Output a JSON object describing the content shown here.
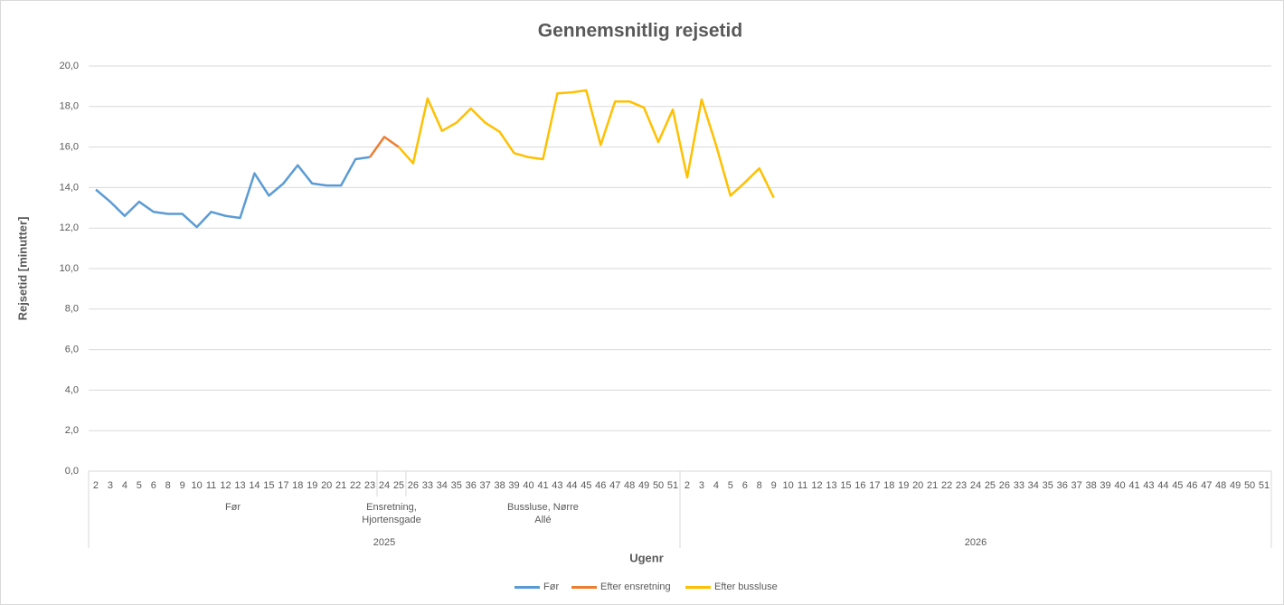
{
  "chart_data": {
    "type": "line",
    "title": "Gennemsnitlig rejsetid",
    "x_label": "Ugenr",
    "y_label": "Rejsetid [minutter]",
    "categories": [
      "2",
      "3",
      "4",
      "5",
      "6",
      "8",
      "9",
      "10",
      "11",
      "12",
      "13",
      "14",
      "15",
      "17",
      "18",
      "19",
      "20",
      "21",
      "22",
      "23",
      "24",
      "25",
      "26",
      "33",
      "34",
      "35",
      "36",
      "37",
      "38",
      "39",
      "40",
      "41",
      "43",
      "44",
      "45",
      "46",
      "47",
      "48",
      "49",
      "50",
      "51",
      "2",
      "3",
      "4",
      "5",
      "6",
      "8",
      "9",
      "10",
      "11",
      "12",
      "13",
      "15",
      "16",
      "17",
      "18",
      "19",
      "20",
      "21",
      "22",
      "23",
      "24",
      "25",
      "26",
      "33",
      "34",
      "35",
      "36",
      "37",
      "38",
      "39",
      "40",
      "41",
      "43",
      "44",
      "45",
      "46",
      "47",
      "48",
      "49",
      "50",
      "51"
    ],
    "group_labels": [
      "Før",
      null,
      null,
      null,
      null,
      null,
      null,
      null,
      null,
      null,
      null,
      null,
      null,
      null,
      null,
      null,
      null,
      null,
      null,
      null,
      "Ensretning, Hjortensgade",
      null,
      "Bussluse, Nørre Allé",
      null,
      null,
      null,
      null,
      null,
      null,
      null,
      null,
      null,
      null,
      null,
      null,
      null,
      null,
      null,
      null,
      null,
      null,
      null,
      null,
      null,
      null,
      null,
      null,
      null,
      null,
      null,
      null,
      null,
      null,
      null,
      null,
      null,
      null,
      null,
      null,
      null,
      null,
      null,
      null,
      null,
      null,
      null,
      null,
      null,
      null,
      null,
      null,
      null,
      null,
      null,
      null,
      null,
      null,
      null,
      null,
      null,
      null,
      null
    ],
    "years": [
      "2025",
      null,
      null,
      null,
      null,
      null,
      null,
      null,
      null,
      null,
      null,
      null,
      null,
      null,
      null,
      null,
      null,
      null,
      null,
      null,
      null,
      null,
      null,
      null,
      null,
      null,
      null,
      null,
      null,
      null,
      null,
      null,
      null,
      null,
      null,
      null,
      null,
      null,
      null,
      null,
      null,
      "2026",
      null,
      null,
      null,
      null,
      null,
      null,
      null,
      null,
      null,
      null,
      null,
      null,
      null,
      null,
      null,
      null,
      null,
      null,
      null,
      null,
      null,
      null,
      null,
      null,
      null,
      null,
      null,
      null,
      null,
      null,
      null,
      null,
      null,
      null,
      null,
      null,
      null,
      null,
      null,
      null
    ],
    "series": [
      {
        "name": "Før",
        "color": "#5b9bd5",
        "values": [
          13.9,
          13.3,
          12.6,
          13.3,
          12.8,
          12.7,
          12.7,
          12.05,
          12.8,
          12.6,
          12.5,
          14.7,
          13.6,
          14.2,
          15.1,
          14.2,
          14.1,
          14.1,
          15.4,
          15.5,
          null,
          null,
          null,
          null,
          null,
          null,
          null,
          null,
          null,
          null,
          null,
          null,
          null,
          null,
          null,
          null,
          null,
          null,
          null,
          null,
          null,
          null,
          null,
          null,
          null,
          null,
          null,
          null,
          null,
          null,
          null,
          null,
          null,
          null,
          null,
          null,
          null,
          null,
          null,
          null,
          null,
          null,
          null,
          null,
          null,
          null,
          null,
          null,
          null,
          null,
          null,
          null,
          null,
          null,
          null,
          null,
          null,
          null,
          null,
          null,
          null,
          null
        ]
      },
      {
        "name": "Efter ensretning",
        "color": "#ed7d31",
        "values": [
          null,
          null,
          null,
          null,
          null,
          null,
          null,
          null,
          null,
          null,
          null,
          null,
          null,
          null,
          null,
          null,
          null,
          null,
          null,
          15.5,
          16.5,
          16.0,
          null,
          null,
          null,
          null,
          null,
          null,
          null,
          null,
          null,
          null,
          null,
          null,
          null,
          null,
          null,
          null,
          null,
          null,
          null,
          null,
          null,
          null,
          null,
          null,
          null,
          null,
          null,
          null,
          null,
          null,
          null,
          null,
          null,
          null,
          null,
          null,
          null,
          null,
          null,
          null,
          null,
          null,
          null,
          null,
          null,
          null,
          null,
          null,
          null,
          null,
          null,
          null,
          null,
          null,
          null,
          null,
          null,
          null,
          null,
          null
        ]
      },
      {
        "name": "Efter bussluse",
        "color": "#ffc000",
        "values": [
          null,
          null,
          null,
          null,
          null,
          null,
          null,
          null,
          null,
          null,
          null,
          null,
          null,
          null,
          null,
          null,
          null,
          null,
          null,
          null,
          null,
          16.0,
          15.2,
          18.4,
          16.8,
          17.2,
          17.9,
          17.2,
          16.75,
          15.7,
          15.5,
          15.4,
          18.65,
          18.7,
          18.8,
          16.1,
          18.25,
          18.25,
          17.95,
          16.25,
          17.85,
          14.5,
          18.35,
          16.1,
          13.6,
          14.25,
          14.95,
          13.5,
          null,
          null,
          null,
          null,
          null,
          null,
          null,
          null,
          null,
          null,
          null,
          null,
          null,
          null,
          null,
          null,
          null,
          null,
          null,
          null,
          null,
          null,
          null,
          null,
          null,
          null,
          null,
          null,
          null,
          null,
          null,
          null,
          null,
          null
        ]
      }
    ],
    "ylim": [
      0,
      20
    ],
    "yticks": [
      {
        "value": 0,
        "label": "0,0"
      },
      {
        "value": 2,
        "label": "2,0"
      },
      {
        "value": 4,
        "label": "4,0"
      },
      {
        "value": 6,
        "label": "6,0"
      },
      {
        "value": 8,
        "label": "8,0"
      },
      {
        "value": 10,
        "label": "10,0"
      },
      {
        "value": 12,
        "label": "12,0"
      },
      {
        "value": 14,
        "label": "14,0"
      },
      {
        "value": 16,
        "label": "16,0"
      },
      {
        "value": 18,
        "label": "18,0"
      },
      {
        "value": 20,
        "label": "20,0"
      }
    ],
    "grid": true,
    "legend": "bottom"
  }
}
